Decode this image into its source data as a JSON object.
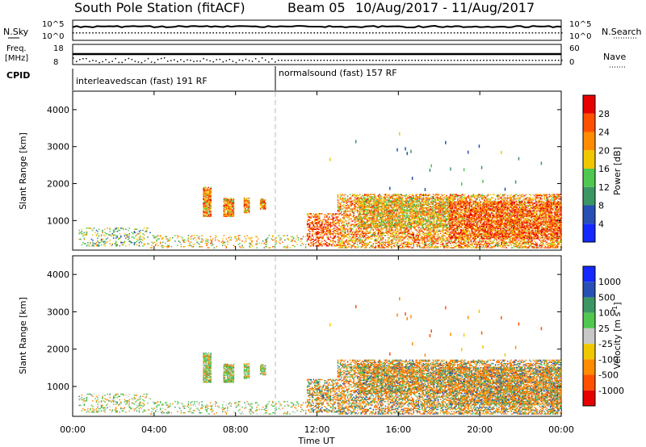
{
  "header": {
    "title": "South Pole Station (fitACF)",
    "beam": "Beam 05",
    "date_range": "10/Aug/2017 - 11/Aug/2017"
  },
  "top_panels": {
    "nsky_label": "N.Sky",
    "nsky_ticks": [
      "10^5",
      "10^0"
    ],
    "nsearch_label": "N.Search",
    "nsearch_ticks": [
      "10^5",
      "10^0"
    ],
    "freq_label_1": "Freq.",
    "freq_label_2": "[MHz]",
    "freq_ticks": [
      "18",
      "8"
    ],
    "nave_label": "Nave",
    "nave_ticks": [
      "60",
      "0"
    ],
    "cpid_label": "CPID",
    "cpid_segments": [
      {
        "label": "interleavedscan (fast) 191 RF",
        "start_hour": 0,
        "end_hour": 10
      },
      {
        "label": "normalsound (fast) 157 RF",
        "start_hour": 10,
        "end_hour": 24
      }
    ]
  },
  "power_panel": {
    "ylabel": "Slant Range [km]",
    "yticks": [
      "1000",
      "2000",
      "3000",
      "4000"
    ],
    "colorbar_label": "Power [dB]",
    "colorbar_ticks": [
      "4",
      "8",
      "12",
      "16",
      "20",
      "24",
      "28"
    ],
    "colors": [
      "#1428ff",
      "#2850b4",
      "#3c9664",
      "#50c850",
      "#f0c800",
      "#ff8c00",
      "#ff5000",
      "#e60000"
    ]
  },
  "velocity_panel": {
    "ylabel": "Slant Range [km]",
    "yticks": [
      "1000",
      "2000",
      "3000",
      "4000"
    ],
    "colorbar_label": "Velocity [m s",
    "colorbar_sup": "-1",
    "colorbar_label_end": "]",
    "colorbar_ticks": [
      "1000",
      "500",
      "100",
      "25",
      "-25",
      "-100",
      "-500",
      "-1000"
    ],
    "colors": [
      "#1428ff",
      "#2850b4",
      "#3c9664",
      "#50c850",
      "#c8c8c8",
      "#f0c800",
      "#ff8c00",
      "#ff5000",
      "#e60000"
    ]
  },
  "xaxis": {
    "label": "Time UT",
    "ticks": [
      "00:00",
      "04:00",
      "08:00",
      "12:00",
      "16:00",
      "20:00",
      "00:00"
    ]
  },
  "chart_data": {
    "type": "heatmap",
    "x_range_hours": [
      0,
      24
    ],
    "y_range_km": [
      200,
      4500
    ],
    "clusters": [
      {
        "t0": 0.3,
        "t1": 3.8,
        "r0": 300,
        "r1": 800,
        "level": 3,
        "density": 0.25
      },
      {
        "t0": 3.8,
        "t1": 11.5,
        "r0": 250,
        "r1": 600,
        "level": 4,
        "density": 0.18
      },
      {
        "t0": 6.4,
        "t1": 6.8,
        "r0": 1100,
        "r1": 1900,
        "level": 5,
        "density": 0.9
      },
      {
        "t0": 7.4,
        "t1": 7.9,
        "r0": 1100,
        "r1": 1600,
        "level": 5,
        "density": 0.9
      },
      {
        "t0": 8.4,
        "t1": 8.7,
        "r0": 1200,
        "r1": 1600,
        "level": 5,
        "density": 0.9
      },
      {
        "t0": 9.2,
        "t1": 9.5,
        "r0": 1300,
        "r1": 1600,
        "level": 5,
        "density": 0.9
      },
      {
        "t0": 11.5,
        "t1": 13.0,
        "r0": 300,
        "r1": 1200,
        "level": 6,
        "density": 0.5
      },
      {
        "t0": 13.0,
        "t1": 24.0,
        "r0": 250,
        "r1": 1700,
        "level": 5,
        "density": 0.55
      },
      {
        "t0": 14.0,
        "t1": 18.5,
        "r0": 800,
        "r1": 1600,
        "level": 4,
        "density": 0.45
      },
      {
        "t0": 18.5,
        "t1": 24.0,
        "r0": 500,
        "r1": 1500,
        "level": 6,
        "density": 0.55
      }
    ]
  }
}
